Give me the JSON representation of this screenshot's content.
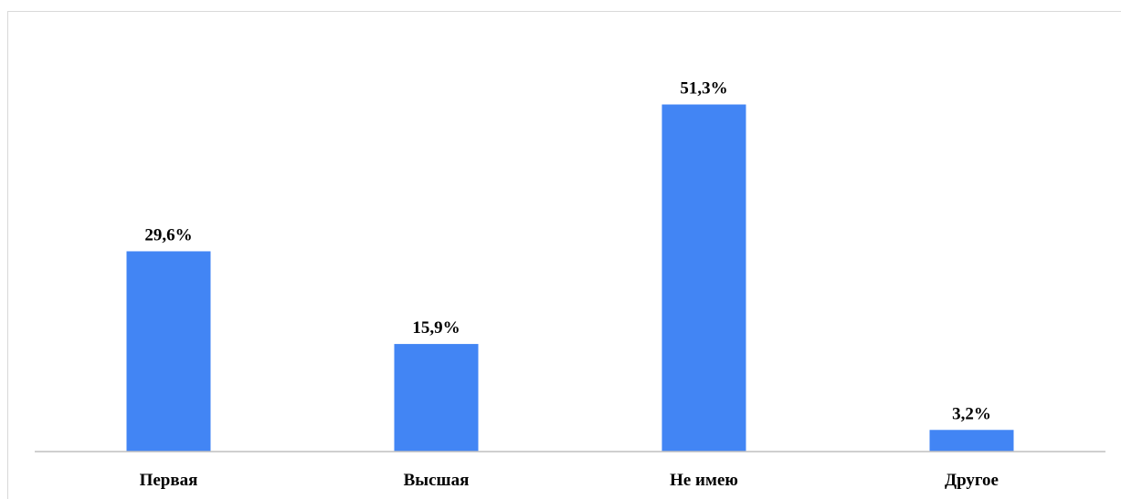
{
  "chart_data": {
    "type": "bar",
    "categories": [
      "Первая",
      "Высшая",
      "Не имею",
      "Другое"
    ],
    "values": [
      29.6,
      15.9,
      51.3,
      3.2
    ],
    "value_labels": [
      "29,6%",
      "15,9%",
      "51,3%",
      "3,2%"
    ],
    "title": "",
    "xlabel": "",
    "ylabel": "",
    "ylim": [
      0,
      60
    ],
    "grid": false,
    "legend": "none",
    "bar_color": "#4285F4",
    "axis_color": "#bfbfbf"
  }
}
